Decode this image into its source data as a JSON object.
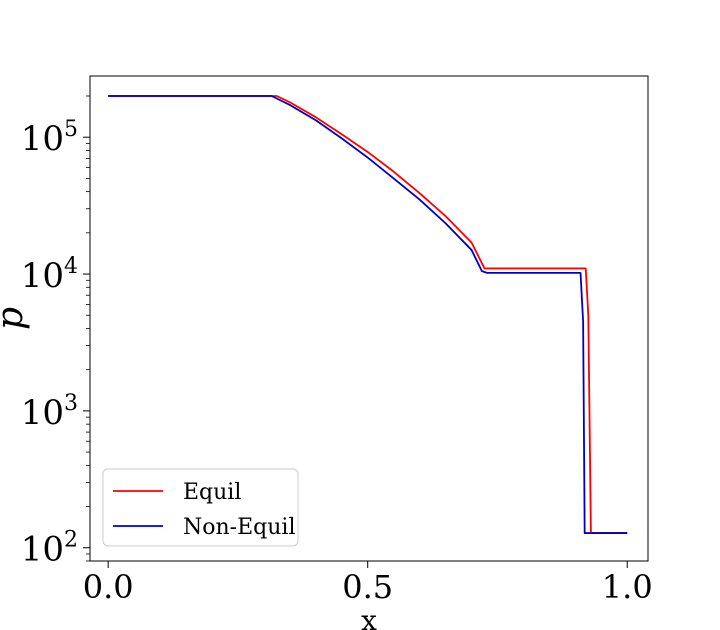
{
  "chart_data": {
    "type": "line",
    "title": "",
    "xlabel": "x",
    "ylabel": "p",
    "yscale": "log",
    "xlim": [
      -0.035,
      1.04
    ],
    "ylim": [
      80,
      280000
    ],
    "grid": false,
    "legend_position": "lower-left",
    "x_ticks": [
      {
        "value": 0.0,
        "label": "0.0"
      },
      {
        "value": 0.5,
        "label": "0.5"
      },
      {
        "value": 1.0,
        "label": "1.0"
      }
    ],
    "y_ticks": [
      {
        "value": 100,
        "base": "10",
        "exp": "2"
      },
      {
        "value": 1000,
        "base": "10",
        "exp": "3"
      },
      {
        "value": 10000,
        "base": "10",
        "exp": "4"
      },
      {
        "value": 100000,
        "base": "10",
        "exp": "5"
      }
    ],
    "series": [
      {
        "name": "Equil",
        "color": "#ff0000",
        "x": [
          0.0,
          0.325,
          0.35,
          0.4,
          0.45,
          0.5,
          0.55,
          0.6,
          0.65,
          0.7,
          0.725,
          0.73,
          0.92,
          0.925,
          0.93,
          1.0
        ],
        "y": [
          200000,
          200000,
          180000,
          140000,
          105000,
          78000,
          56000,
          39000,
          26500,
          17000,
          11000,
          11000,
          11000,
          5000,
          128,
          128
        ]
      },
      {
        "name": "Non-Equil",
        "color": "#0000c0",
        "x": [
          0.0,
          0.315,
          0.35,
          0.4,
          0.45,
          0.5,
          0.55,
          0.6,
          0.65,
          0.7,
          0.72,
          0.73,
          0.91,
          0.915,
          0.918,
          1.0
        ],
        "y": [
          200000,
          200000,
          172000,
          133000,
          98000,
          71000,
          50000,
          35000,
          23500,
          15000,
          10500,
          10200,
          10200,
          4500,
          128,
          128
        ]
      }
    ]
  }
}
